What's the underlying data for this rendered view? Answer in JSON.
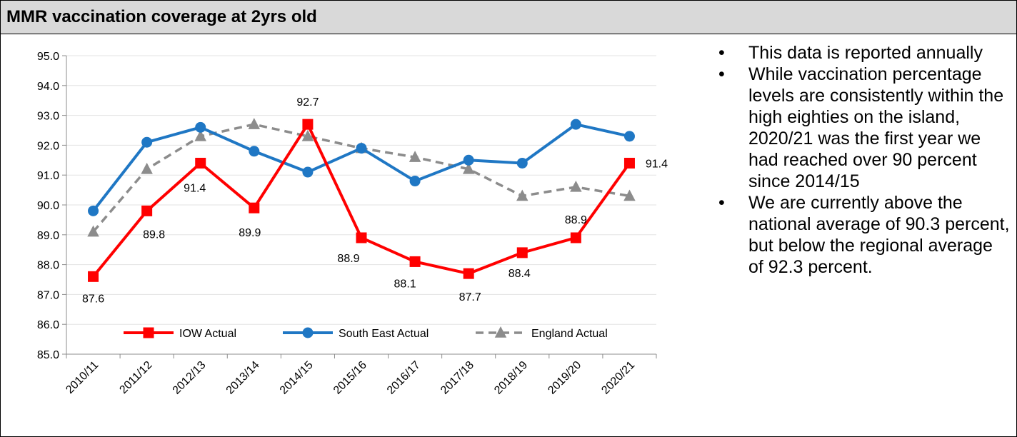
{
  "title": "MMR vaccination coverage at 2yrs old",
  "notes": [
    "This data is reported annually",
    "While vaccination percentage levels are consistently within the high eighties on the island, 2020/21 was the first year we had reached over 90 percent since 2014/15",
    "We are currently above the national average of 90.3 percent, but below the regional average of 92.3 percent."
  ],
  "chart_data": {
    "type": "line",
    "title": "",
    "xlabel": "",
    "ylabel": "",
    "ylim": [
      85.0,
      95.0
    ],
    "ytick_step": 1.0,
    "grid": true,
    "legend_position": "bottom-inside",
    "categories": [
      "2010/11",
      "2011/12",
      "2012/13",
      "2013/14",
      "2014/15",
      "2015/16",
      "2016/17",
      "2017/18",
      "2018/19",
      "2019/20",
      "2020/21"
    ],
    "series": [
      {
        "name": "IOW Actual",
        "color": "#ff0000",
        "marker": "square",
        "dashed": false,
        "show_labels": true,
        "values": [
          87.6,
          89.8,
          91.4,
          89.9,
          92.7,
          88.9,
          88.1,
          87.7,
          88.4,
          88.9,
          91.4
        ]
      },
      {
        "name": "South East Actual",
        "color": "#1f77c4",
        "marker": "circle",
        "dashed": false,
        "show_labels": false,
        "values": [
          89.8,
          92.1,
          92.6,
          91.8,
          91.1,
          91.9,
          90.8,
          91.5,
          91.4,
          92.7,
          92.3
        ]
      },
      {
        "name": "England Actual",
        "color": "#8c8c8c",
        "marker": "triangle",
        "dashed": true,
        "show_labels": false,
        "values": [
          89.1,
          91.2,
          92.3,
          92.7,
          92.3,
          91.9,
          91.6,
          91.2,
          90.3,
          90.6,
          90.3
        ]
      }
    ]
  }
}
